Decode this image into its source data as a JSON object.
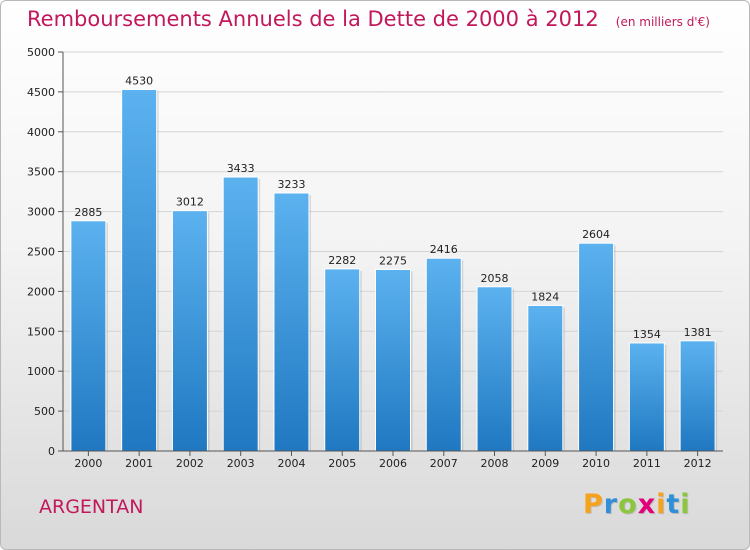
{
  "chart_data": {
    "type": "bar",
    "title": "Remboursements Annuels de la Dette de 2000 à 2012",
    "subtitle": "(en milliers d'€)",
    "categories": [
      "2000",
      "2001",
      "2002",
      "2003",
      "2004",
      "2005",
      "2006",
      "2007",
      "2008",
      "2009",
      "2010",
      "2011",
      "2012"
    ],
    "values": [
      2885,
      4530,
      3012,
      3433,
      3233,
      2282,
      2275,
      2416,
      2058,
      1824,
      2604,
      1354,
      1381
    ],
    "ylim": [
      0,
      5000
    ],
    "yticks": [
      0,
      500,
      1000,
      1500,
      2000,
      2500,
      3000,
      3500,
      4000,
      4500,
      5000
    ],
    "grid": true,
    "xlabel": "",
    "ylabel": "",
    "bar_color": "#2f8fd8"
  },
  "place_name": "ARGENTAN",
  "logo": {
    "letters": [
      "P",
      "r",
      "o",
      "x",
      "i",
      "t",
      "i"
    ],
    "colors": [
      "#f7a21b",
      "#2f8fd8",
      "#8cc63f",
      "#e4007c",
      "#f7a21b",
      "#2f8fd8",
      "#8cc63f"
    ]
  },
  "title_color": "#c2185b"
}
